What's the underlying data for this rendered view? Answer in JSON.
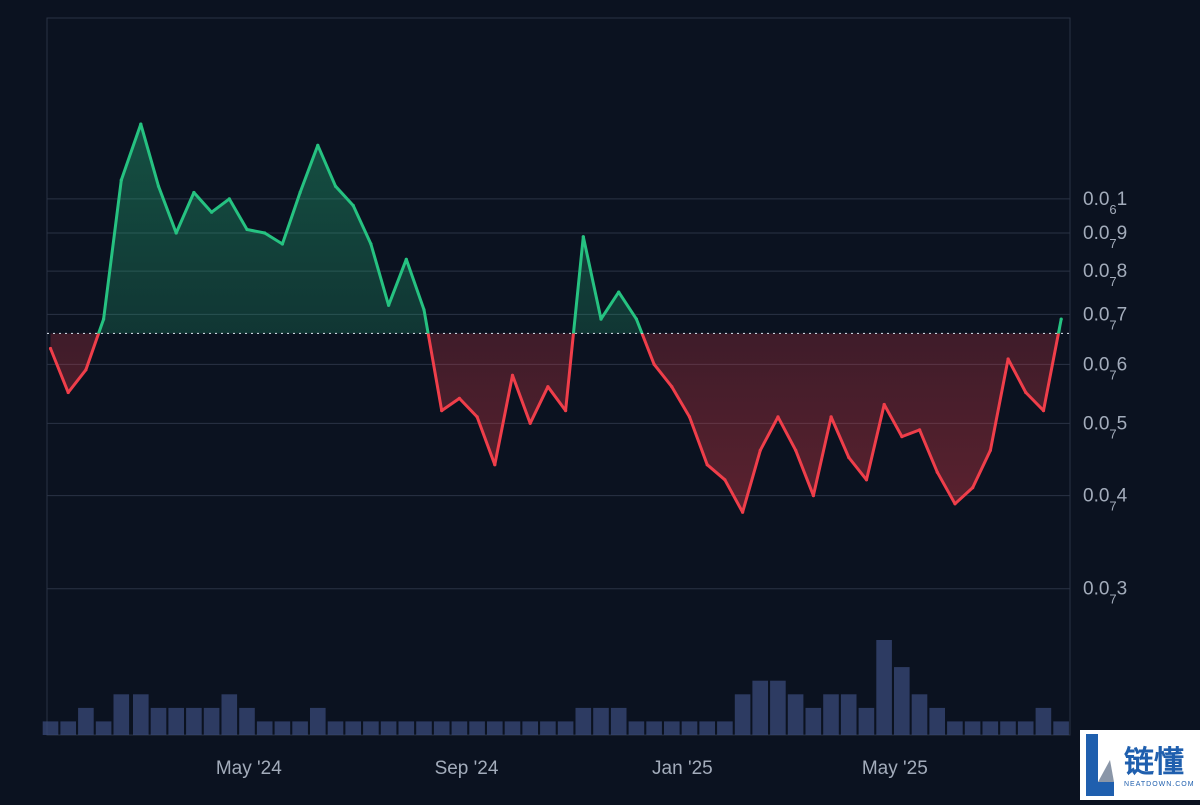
{
  "chart_data": {
    "type": "area",
    "baseline": 6.6e-08,
    "y_scale": "log",
    "ylim": [
      2e-08,
      1.4e-07
    ],
    "y_ticks": [
      {
        "value": 1e-07,
        "label": "0.0",
        "sub": "6",
        "tail": "1"
      },
      {
        "value": 9e-08,
        "label": "0.0",
        "sub": "7",
        "tail": "9"
      },
      {
        "value": 8e-08,
        "label": "0.0",
        "sub": "7",
        "tail": "8"
      },
      {
        "value": 7e-08,
        "label": "0.0",
        "sub": "7",
        "tail": "7"
      },
      {
        "value": 6e-08,
        "label": "0.0",
        "sub": "7",
        "tail": "6"
      },
      {
        "value": 5e-08,
        "label": "0.0",
        "sub": "7",
        "tail": "5"
      },
      {
        "value": 4e-08,
        "label": "0.0",
        "sub": "7",
        "tail": "4"
      },
      {
        "value": 3e-08,
        "label": "0.0",
        "sub": "7",
        "tail": "3"
      }
    ],
    "x_ticks": [
      {
        "date": "2024-05-01",
        "label": "May '24"
      },
      {
        "date": "2024-09-01",
        "label": "Sep '24"
      },
      {
        "date": "2025-01-01",
        "label": "Jan '25"
      },
      {
        "date": "2025-05-01",
        "label": "May '25"
      }
    ],
    "x": [
      "2024-01-10",
      "2024-01-20",
      "2024-01-30",
      "2024-02-09",
      "2024-02-19",
      "2024-03-01",
      "2024-03-11",
      "2024-03-21",
      "2024-03-31",
      "2024-04-10",
      "2024-04-20",
      "2024-04-30",
      "2024-05-10",
      "2024-05-20",
      "2024-05-30",
      "2024-06-09",
      "2024-06-19",
      "2024-06-29",
      "2024-07-09",
      "2024-07-19",
      "2024-07-29",
      "2024-08-08",
      "2024-08-18",
      "2024-08-28",
      "2024-09-07",
      "2024-09-17",
      "2024-09-27",
      "2024-10-07",
      "2024-10-17",
      "2024-10-27",
      "2024-11-06",
      "2024-11-16",
      "2024-11-26",
      "2024-12-06",
      "2024-12-16",
      "2024-12-26",
      "2025-01-05",
      "2025-01-15",
      "2025-01-25",
      "2025-02-04",
      "2025-02-14",
      "2025-02-24",
      "2025-03-06",
      "2025-03-16",
      "2025-03-26",
      "2025-04-05",
      "2025-04-15",
      "2025-04-25",
      "2025-05-05",
      "2025-05-15",
      "2025-05-25",
      "2025-06-04",
      "2025-06-14",
      "2025-06-24",
      "2025-07-04",
      "2025-07-14",
      "2025-07-24",
      "2025-08-03"
    ],
    "values": [
      6.3e-08,
      5.5e-08,
      5.9e-08,
      6.9e-08,
      1.06e-07,
      1.26e-07,
      1.04e-07,
      9e-08,
      1.02e-07,
      9.6e-08,
      1e-07,
      9.1e-08,
      9e-08,
      8.7e-08,
      1.02e-07,
      1.18e-07,
      1.04e-07,
      9.8e-08,
      8.7e-08,
      7.2e-08,
      8.3e-08,
      7.1e-08,
      5.2e-08,
      5.4e-08,
      5.1e-08,
      4.4e-08,
      5.8e-08,
      5e-08,
      5.6e-08,
      5.2e-08,
      8.9e-08,
      6.9e-08,
      7.5e-08,
      6.9e-08,
      6e-08,
      5.6e-08,
      5.1e-08,
      4.4e-08,
      4.2e-08,
      3.8e-08,
      4.6e-08,
      5.1e-08,
      4.6e-08,
      4e-08,
      5.1e-08,
      4.5e-08,
      4.2e-08,
      5.3e-08,
      4.8e-08,
      4.9e-08,
      4.3e-08,
      3.9e-08,
      4.1e-08,
      4.6e-08,
      6.1e-08,
      5.5e-08,
      5.2e-08,
      6.9e-08
    ],
    "volume": [
      1,
      1,
      2,
      1,
      3,
      3,
      2,
      2,
      2,
      2,
      3,
      2,
      1,
      1,
      1,
      2,
      1,
      1,
      1,
      1,
      1,
      1,
      1,
      1,
      1,
      1,
      1,
      1,
      1,
      1,
      2,
      2,
      2,
      1,
      1,
      1,
      1,
      1,
      1,
      3,
      4,
      4,
      3,
      2,
      3,
      3,
      2,
      7,
      5,
      3,
      2,
      1,
      1,
      1,
      1,
      1,
      2,
      1
    ],
    "colors": {
      "up": "#26c281",
      "down": "#ef3e4a",
      "grid": "#2a3344",
      "volume": "#3a4a78",
      "baseline": "#c9d1dc"
    },
    "grid": true,
    "legend": "none"
  },
  "watermark": {
    "text": "链懂",
    "subtext": "NEATDOWN.COM"
  }
}
